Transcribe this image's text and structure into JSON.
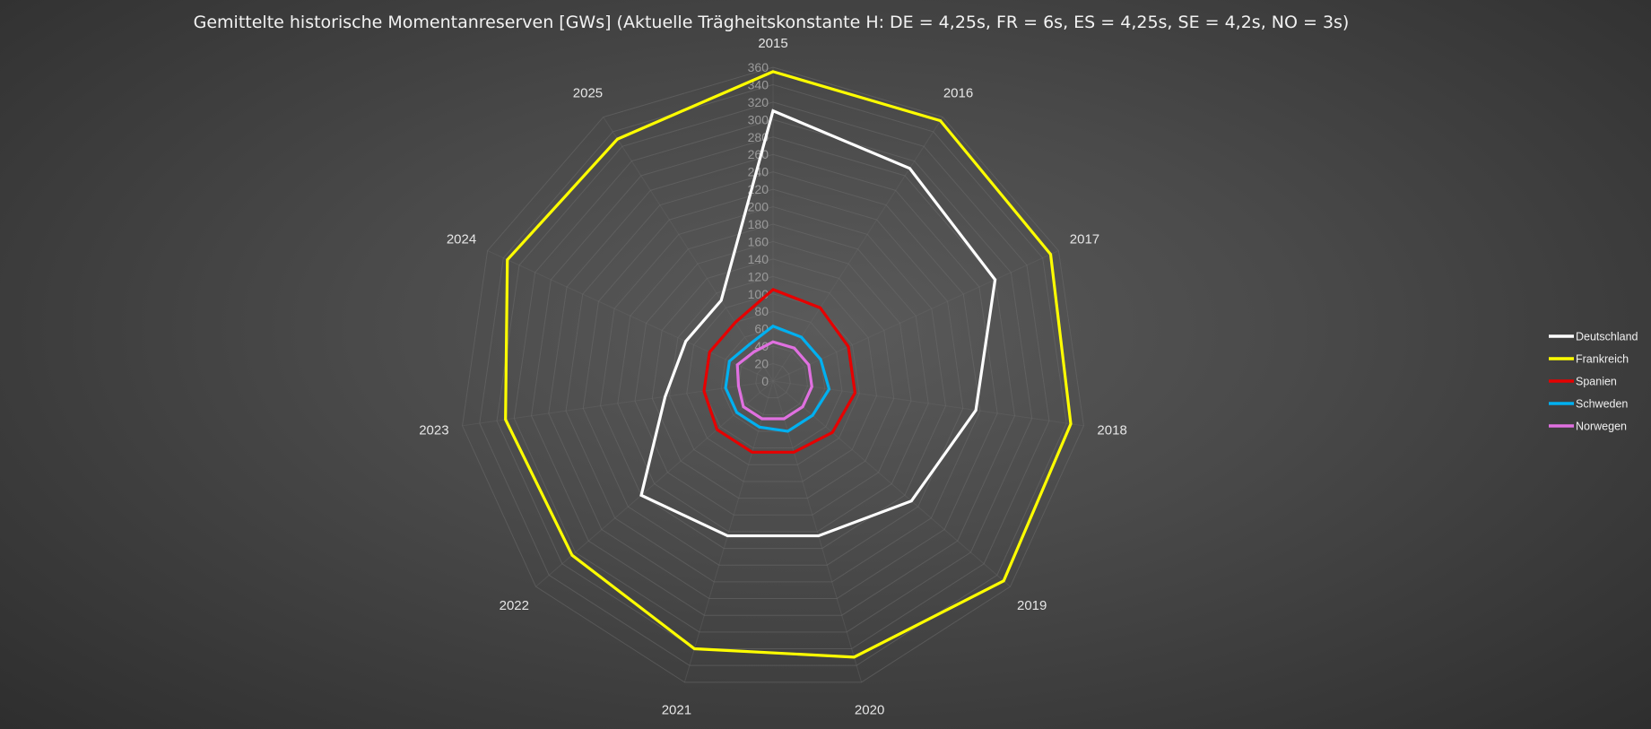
{
  "chart_data": {
    "type": "radar",
    "title": "Gemittelte historische Momentanreserven [GWs] (Aktuelle Trägheitskonstante H: DE = 4,25s, FR = 6s, ES = 4,25s, SE = 4,2s, NO = 3s)",
    "categories": [
      "2015",
      "2016",
      "2017",
      "2018",
      "2019",
      "2020",
      "2021",
      "2022",
      "2023",
      "2024",
      "2025"
    ],
    "r_ticks": [
      "0",
      "20",
      "40",
      "60",
      "80",
      "100",
      "120",
      "140",
      "160",
      "180",
      "200",
      "220",
      "240",
      "260",
      "280",
      "300",
      "320",
      "340",
      "360"
    ],
    "r_range": [
      0,
      360
    ],
    "grid": true,
    "legend_position": "right",
    "series": [
      {
        "name": "Deutschland",
        "color": "#ffffff",
        "values": [
          310,
          290,
          280,
          235,
          210,
          185,
          185,
          200,
          125,
          110,
          110
        ]
      },
      {
        "name": "Frankreich",
        "color": "#ffff00",
        "values": [
          355,
          355,
          350,
          345,
          350,
          330,
          320,
          305,
          310,
          335,
          330
        ]
      },
      {
        "name": "Spanien",
        "color": "#e60000",
        "values": [
          105,
          100,
          95,
          95,
          90,
          85,
          85,
          85,
          80,
          80,
          80
        ]
      },
      {
        "name": "Schweden",
        "color": "#00b0f0",
        "values": [
          63,
          60,
          60,
          65,
          60,
          60,
          55,
          55,
          55,
          55,
          50
        ]
      },
      {
        "name": "Norwegen",
        "color": "#e070e0",
        "values": [
          45,
          45,
          45,
          45,
          45,
          45,
          45,
          45,
          40,
          45,
          40
        ]
      }
    ]
  }
}
